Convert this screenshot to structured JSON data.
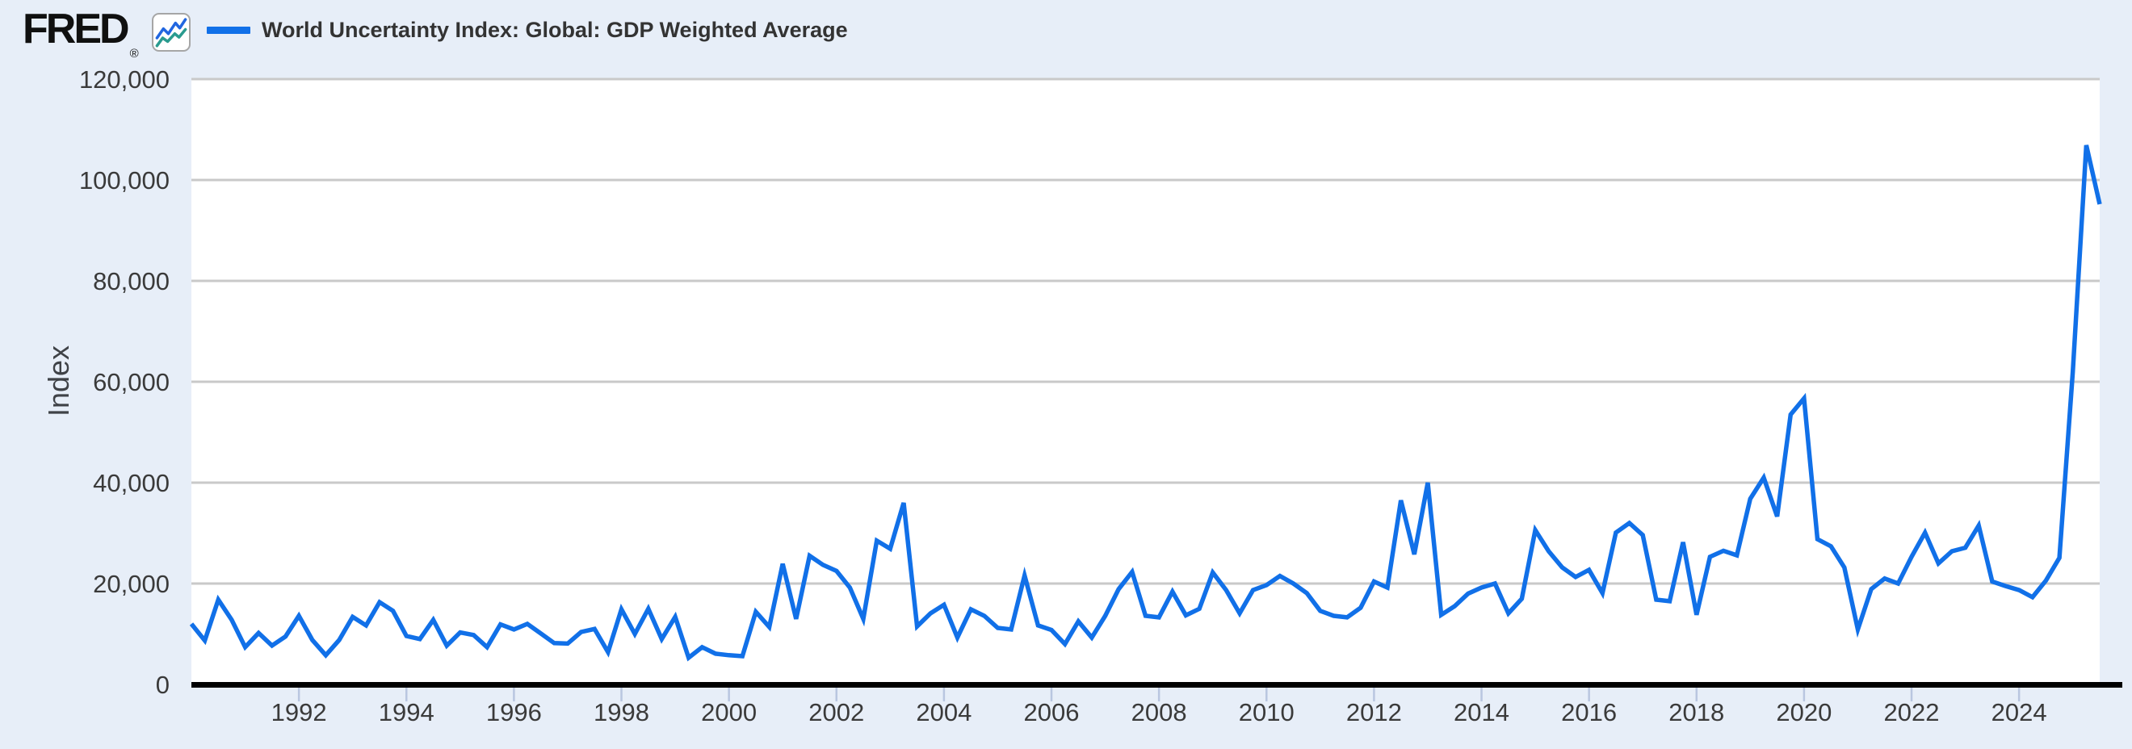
{
  "header": {
    "logo_text": "FRED",
    "registered_mark": "®",
    "logo_icon": "sparkline-chart-icon",
    "legend": {
      "series_label": "World Uncertainty Index: Global: GDP Weighted Average",
      "swatch_color": "#1170e8"
    }
  },
  "y_axis": {
    "title": "Index",
    "tick_labels": [
      "0",
      "20,000",
      "40,000",
      "60,000",
      "80,000",
      "100,000",
      "120,000"
    ]
  },
  "x_axis": {
    "tick_labels": [
      "1992",
      "1994",
      "1996",
      "1998",
      "2000",
      "2002",
      "2004",
      "2006",
      "2008",
      "2010",
      "2012",
      "2014",
      "2016",
      "2018",
      "2020",
      "2022",
      "2024"
    ]
  },
  "colors": {
    "background": "#e7eef8",
    "plot_background": "#ffffff",
    "line": "#1170e8",
    "gridline": "#c9c9c9",
    "axis": "#000000",
    "tick_mark": "#b9c6e0",
    "label_text": "#3a3a3a",
    "icon_blue": "#2166e0",
    "icon_teal": "#2a9b8f"
  },
  "chart_data": {
    "type": "line",
    "title": "World Uncertainty Index: Global: GDP Weighted Average",
    "ylabel": "Index",
    "frequency": "Quarterly",
    "x_first": "1990 Q1",
    "x_last": "2025 Q3",
    "x_start_year": 1990.0,
    "x_step_years": 0.25,
    "ylim": [
      0,
      120000
    ],
    "yticks": [
      0,
      20000,
      40000,
      60000,
      80000,
      100000,
      120000
    ],
    "xticks_years": [
      1992,
      1994,
      1996,
      1998,
      2000,
      2002,
      2004,
      2006,
      2008,
      2010,
      2012,
      2014,
      2016,
      2018,
      2020,
      2022,
      2024
    ],
    "grid": true,
    "legend_position": "top-left",
    "values": [
      12000,
      8700,
      16800,
      12800,
      7400,
      10200,
      7700,
      9500,
      13600,
      8800,
      5800,
      8800,
      13400,
      11700,
      16300,
      14600,
      9600,
      9000,
      12800,
      7700,
      10300,
      9800,
      7400,
      11900,
      10900,
      12000,
      10100,
      8200,
      8100,
      10400,
      11000,
      6400,
      14900,
      10000,
      15000,
      9000,
      13400,
      5300,
      7400,
      6100,
      5800,
      5600,
      14400,
      11400,
      23900,
      13000,
      25500,
      23700,
      22500,
      19200,
      13000,
      28500,
      26900,
      36000,
      11500,
      14100,
      15800,
      9300,
      14900,
      13600,
      11200,
      10900,
      21600,
      11700,
      10800,
      8000,
      12500,
      9300,
      13600,
      18900,
      22300,
      13600,
      13300,
      18400,
      13700,
      15000,
      22200,
      18700,
      14100,
      18700,
      19700,
      21500,
      20000,
      18100,
      14600,
      13600,
      13300,
      15200,
      20400,
      19200,
      36500,
      25800,
      40000,
      13800,
      15500,
      18000,
      19200,
      20000,
      14100,
      17000,
      30600,
      26400,
      23200,
      21300,
      22700,
      18100,
      30100,
      32000,
      29600,
      16800,
      16500,
      28200,
      13800,
      25300,
      26500,
      25600,
      36800,
      41000,
      33300,
      53500,
      56700,
      28800,
      27400,
      23200,
      10900,
      18900,
      21000,
      20000,
      25300,
      30100,
      24000,
      26400,
      27100,
      31500,
      20400,
      19500,
      18700,
      17300,
      20600,
      25100,
      62000,
      106900,
      95200
    ]
  }
}
